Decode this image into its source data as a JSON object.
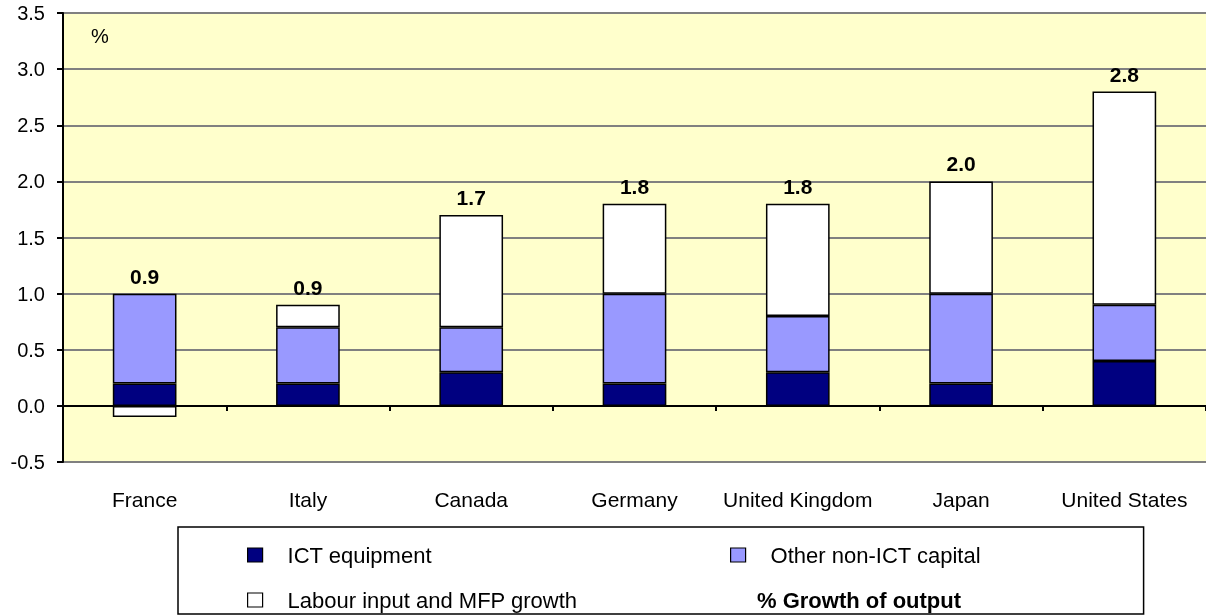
{
  "chart_data": {
    "type": "bar",
    "stacked": true,
    "categories": [
      "France",
      "Italy",
      "Canada",
      "Germany",
      "United Kingdom",
      "Japan",
      "United States"
    ],
    "series": [
      {
        "name": "ICT equipment",
        "color": "#000080",
        "values": [
          0.2,
          0.2,
          0.3,
          0.2,
          0.3,
          0.2,
          0.4
        ]
      },
      {
        "name": "Other non-ICT capital",
        "color": "#9999ff",
        "values": [
          0.8,
          0.5,
          0.4,
          0.8,
          0.5,
          0.8,
          0.5
        ]
      },
      {
        "name": "Labour input and MFP growth",
        "color": "#ffffff",
        "values": [
          -0.1,
          0.2,
          1.0,
          0.8,
          1.0,
          1.0,
          1.9
        ]
      }
    ],
    "totals": [
      "0.9",
      "0.9",
      "1.7",
      "1.8",
      "1.8",
      "2.0",
      "2.8"
    ],
    "ylabel": "%",
    "ylim": [
      -0.5,
      3.5
    ],
    "yticks": [
      -0.5,
      {
        "value": 0,
        "label": "0.0"
      },
      0.5,
      {
        "value": 1,
        "label": "1.0"
      },
      1.5,
      {
        "value": 2,
        "label": "2.0"
      },
      2.5,
      {
        "value": 3,
        "label": "3.0"
      },
      3.5
    ],
    "grid": "y",
    "legend": "bottom",
    "annotations": [
      "% Growth of output"
    ]
  }
}
